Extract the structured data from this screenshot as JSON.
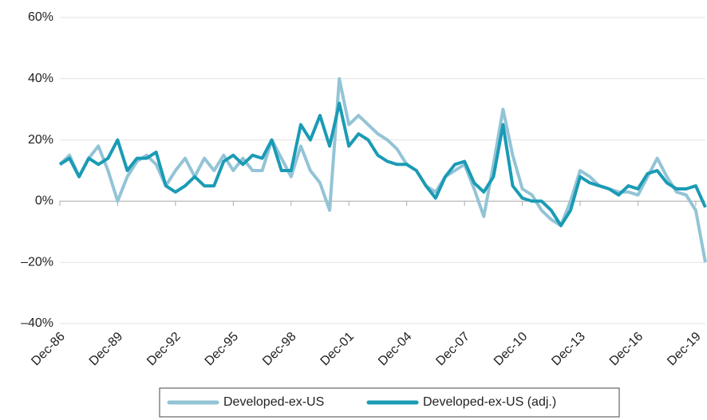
{
  "chart_data": {
    "type": "line",
    "categories": [
      "Dec-86",
      null,
      null,
      null,
      null,
      null,
      "Dec-89",
      null,
      null,
      null,
      null,
      null,
      "Dec-92",
      null,
      null,
      null,
      null,
      null,
      "Dec-95",
      null,
      null,
      null,
      null,
      null,
      "Dec-98",
      null,
      null,
      null,
      null,
      null,
      "Dec-01",
      null,
      null,
      null,
      null,
      null,
      "Dec-04",
      null,
      null,
      null,
      null,
      null,
      "Dec-07",
      null,
      null,
      null,
      null,
      null,
      "Dec-10",
      null,
      null,
      null,
      null,
      null,
      "Dec-13",
      null,
      null,
      null,
      null,
      null,
      "Dec-16",
      null,
      null,
      null,
      null,
      null,
      "Dec-19",
      null
    ],
    "series": [
      {
        "name": "Developed-ex-US",
        "color": "#93c4d6",
        "values": [
          12,
          15,
          8,
          14,
          18,
          10,
          0,
          8,
          13,
          15,
          12,
          5,
          10,
          14,
          8,
          14,
          10,
          15,
          10,
          14,
          10,
          10,
          20,
          14,
          8,
          18,
          10,
          6,
          -3,
          40,
          25,
          28,
          25,
          22,
          20,
          17,
          12,
          10,
          5,
          3,
          8,
          10,
          12,
          4,
          -5,
          12,
          30,
          15,
          4,
          2,
          -3,
          -6,
          -8,
          0,
          10,
          8,
          5,
          4,
          3,
          3,
          2,
          8,
          14,
          8,
          3,
          2,
          -3,
          -20
        ]
      },
      {
        "name": "Developed-ex-US (adj.)",
        "color": "#1a9bb5",
        "values": [
          12,
          14,
          8,
          14,
          12,
          14,
          20,
          10,
          14,
          14,
          16,
          5,
          3,
          5,
          8,
          5,
          5,
          13,
          15,
          12,
          15,
          14,
          20,
          10,
          10,
          25,
          20,
          28,
          18,
          32,
          18,
          22,
          20,
          15,
          13,
          12,
          12,
          10,
          5,
          1,
          8,
          12,
          13,
          6,
          3,
          8,
          25,
          5,
          1,
          0,
          0,
          -3,
          -8,
          -3,
          8,
          6,
          5,
          4,
          2,
          5,
          4,
          9,
          10,
          6,
          4,
          4,
          5,
          -2
        ]
      }
    ],
    "ylim": [
      -40,
      60
    ],
    "yticks": [
      {
        "value": -40,
        "label": "–40%"
      },
      {
        "value": -20,
        "label": "–20%"
      },
      {
        "value": 0,
        "label": "0%"
      },
      {
        "value": 20,
        "label": "20%"
      },
      {
        "value": 40,
        "label": "40%"
      },
      {
        "value": 60,
        "label": "60%"
      }
    ],
    "grid": true
  }
}
